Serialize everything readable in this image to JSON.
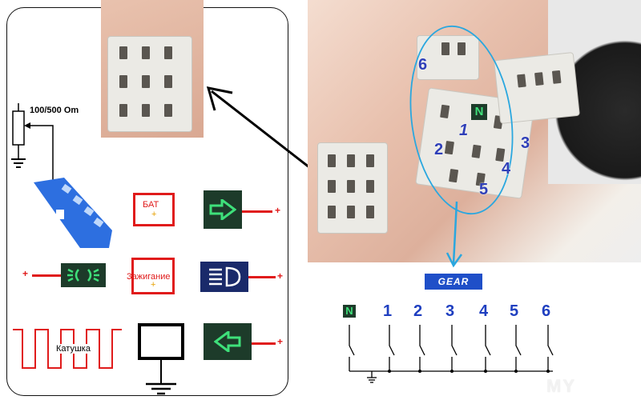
{
  "left_panel": {
    "resistor_label": "100/500 Om",
    "battery_label": "БАТ",
    "battery_plus": "+",
    "ignition_label": "Зажигание",
    "ignition_plus": "+",
    "coil_label": "Катушка",
    "plus": "+"
  },
  "photo": {
    "pin_labels": [
      "6",
      "N",
      "1",
      "2",
      "3",
      "4",
      "5"
    ]
  },
  "gear_label": "GEAR",
  "schematic": {
    "labels": [
      "N",
      "1",
      "2",
      "3",
      "4",
      "5",
      "6"
    ]
  },
  "watermark": "MY",
  "colors": {
    "red": "#e01b1b",
    "blue_num": "#1f3fc0",
    "green_led": "#3ee07a",
    "cyan_arrow": "#2aa7df"
  }
}
